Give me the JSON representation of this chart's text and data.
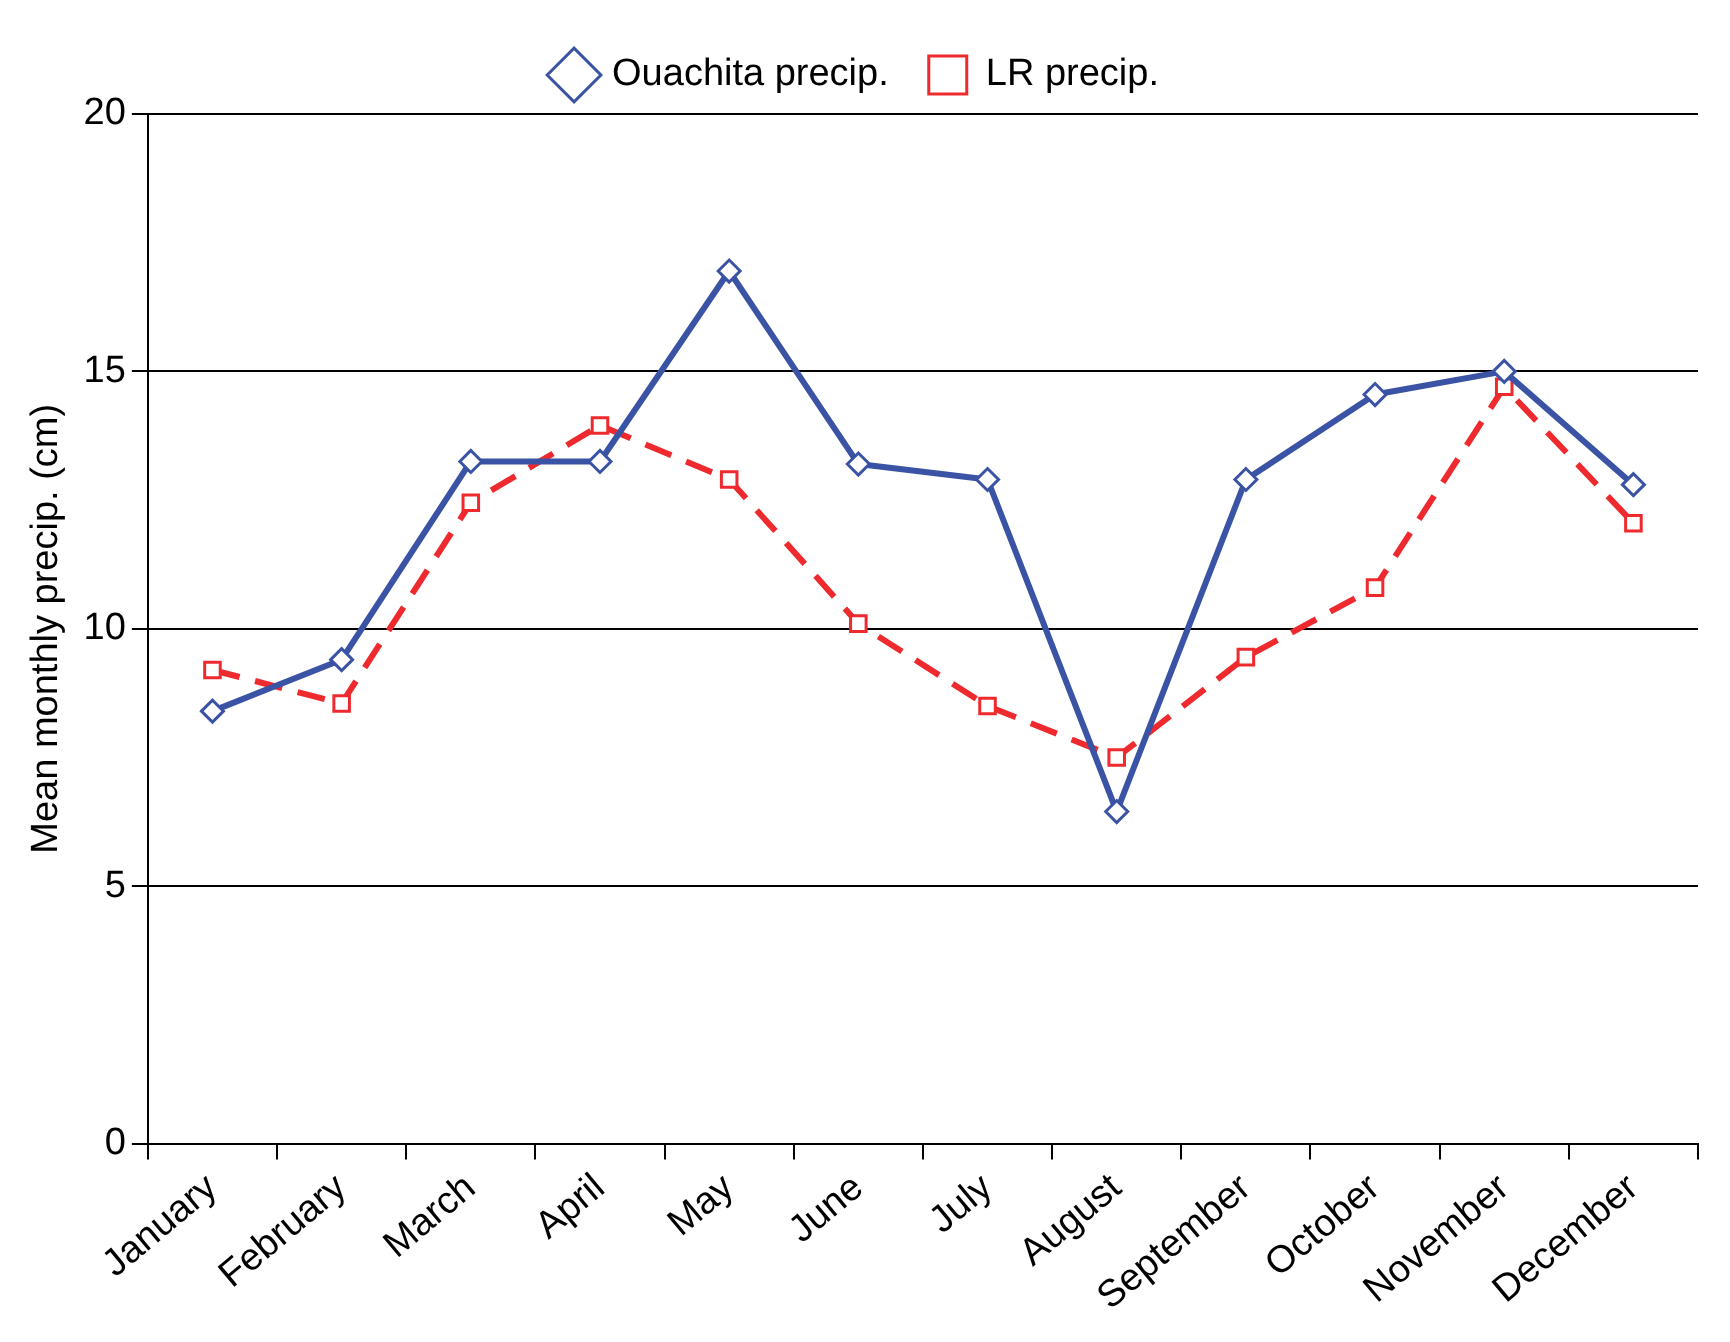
{
  "chart_data": {
    "type": "line",
    "ylabel": "Mean monthly precip. (cm)",
    "categories": [
      "January",
      "February",
      "March",
      "April",
      "May",
      "June",
      "July",
      "August",
      "September",
      "October",
      "November",
      "December"
    ],
    "series": [
      {
        "name": "Ouachita precip.",
        "color": "#3a53a4",
        "marker": "diamond",
        "line_style": "solid",
        "values": [
          8.4,
          9.4,
          13.25,
          13.25,
          16.95,
          13.2,
          12.9,
          6.45,
          12.9,
          14.55,
          15.0,
          12.8
        ]
      },
      {
        "name": "LR precip.",
        "color": "#ee2a2e",
        "marker": "square",
        "line_style": "dashed",
        "values": [
          9.2,
          8.55,
          12.45,
          13.95,
          12.9,
          10.1,
          8.5,
          7.5,
          9.45,
          10.8,
          14.7,
          12.05
        ]
      }
    ],
    "ylim": [
      0,
      20
    ],
    "yticks": [
      0,
      5,
      10,
      15,
      20
    ],
    "grid": "y",
    "legend": "top"
  }
}
